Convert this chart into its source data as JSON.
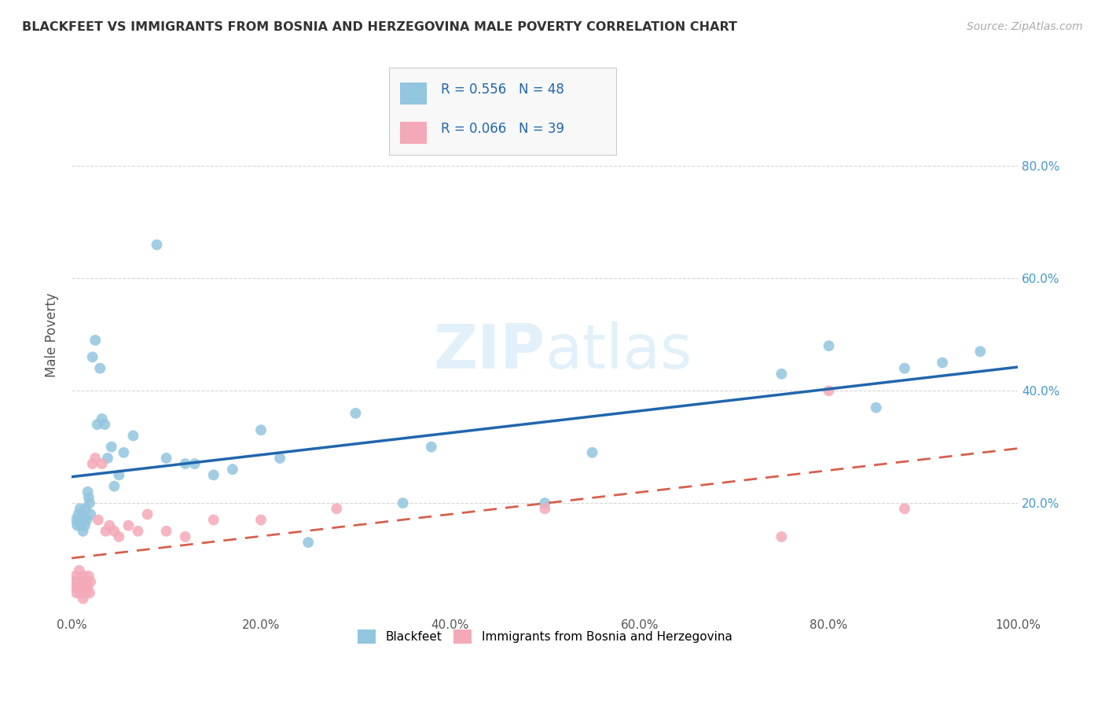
{
  "title": "BLACKFEET VS IMMIGRANTS FROM BOSNIA AND HERZEGOVINA MALE POVERTY CORRELATION CHART",
  "source": "Source: ZipAtlas.com",
  "ylabel": "Male Poverty",
  "xlim": [
    0,
    1.0
  ],
  "ylim": [
    0,
    1.0
  ],
  "xtick_labels": [
    "0.0%",
    "20.0%",
    "40.0%",
    "60.0%",
    "80.0%",
    "100.0%"
  ],
  "xtick_vals": [
    0.0,
    0.2,
    0.4,
    0.6,
    0.8,
    1.0
  ],
  "ytick_labels": [
    "20.0%",
    "40.0%",
    "60.0%",
    "80.0%"
  ],
  "ytick_vals": [
    0.2,
    0.4,
    0.6,
    0.8
  ],
  "blackfeet_color": "#92c5de",
  "bosnia_color": "#f4a9b8",
  "line_blackfeet_color": "#2166ac",
  "line_bosnia_color": "#d6604d",
  "legend_color": "#2166ac",
  "blackfeet_x": [
    0.004,
    0.006,
    0.007,
    0.008,
    0.009,
    0.01,
    0.011,
    0.012,
    0.013,
    0.014,
    0.015,
    0.016,
    0.017,
    0.018,
    0.019,
    0.02,
    0.022,
    0.025,
    0.027,
    0.03,
    0.032,
    0.035,
    0.038,
    0.042,
    0.045,
    0.05,
    0.055,
    0.065,
    0.09,
    0.1,
    0.12,
    0.13,
    0.15,
    0.17,
    0.2,
    0.22,
    0.25,
    0.3,
    0.35,
    0.38,
    0.5,
    0.55,
    0.75,
    0.8,
    0.85,
    0.88,
    0.92,
    0.96
  ],
  "blackfeet_y": [
    0.17,
    0.16,
    0.18,
    0.17,
    0.19,
    0.16,
    0.18,
    0.15,
    0.17,
    0.16,
    0.19,
    0.17,
    0.22,
    0.21,
    0.2,
    0.18,
    0.46,
    0.49,
    0.34,
    0.44,
    0.35,
    0.34,
    0.28,
    0.3,
    0.23,
    0.25,
    0.29,
    0.32,
    0.66,
    0.28,
    0.27,
    0.27,
    0.25,
    0.26,
    0.33,
    0.28,
    0.13,
    0.36,
    0.2,
    0.3,
    0.2,
    0.29,
    0.43,
    0.48,
    0.37,
    0.44,
    0.45,
    0.47
  ],
  "bosnia_x": [
    0.002,
    0.003,
    0.004,
    0.005,
    0.006,
    0.007,
    0.008,
    0.009,
    0.01,
    0.011,
    0.012,
    0.013,
    0.014,
    0.015,
    0.016,
    0.017,
    0.018,
    0.019,
    0.02,
    0.022,
    0.025,
    0.028,
    0.032,
    0.036,
    0.04,
    0.045,
    0.05,
    0.06,
    0.07,
    0.08,
    0.1,
    0.12,
    0.15,
    0.2,
    0.28,
    0.5,
    0.75,
    0.8,
    0.88
  ],
  "bosnia_y": [
    0.06,
    0.05,
    0.07,
    0.04,
    0.06,
    0.05,
    0.08,
    0.04,
    0.06,
    0.05,
    0.03,
    0.07,
    0.05,
    0.04,
    0.06,
    0.05,
    0.07,
    0.04,
    0.06,
    0.27,
    0.28,
    0.17,
    0.27,
    0.15,
    0.16,
    0.15,
    0.14,
    0.16,
    0.15,
    0.18,
    0.15,
    0.14,
    0.17,
    0.17,
    0.19,
    0.19,
    0.14,
    0.4,
    0.19
  ],
  "watermark_zip": "ZIP",
  "watermark_atlas": "atlas",
  "background_color": "#ffffff",
  "grid_color": "#cccccc"
}
